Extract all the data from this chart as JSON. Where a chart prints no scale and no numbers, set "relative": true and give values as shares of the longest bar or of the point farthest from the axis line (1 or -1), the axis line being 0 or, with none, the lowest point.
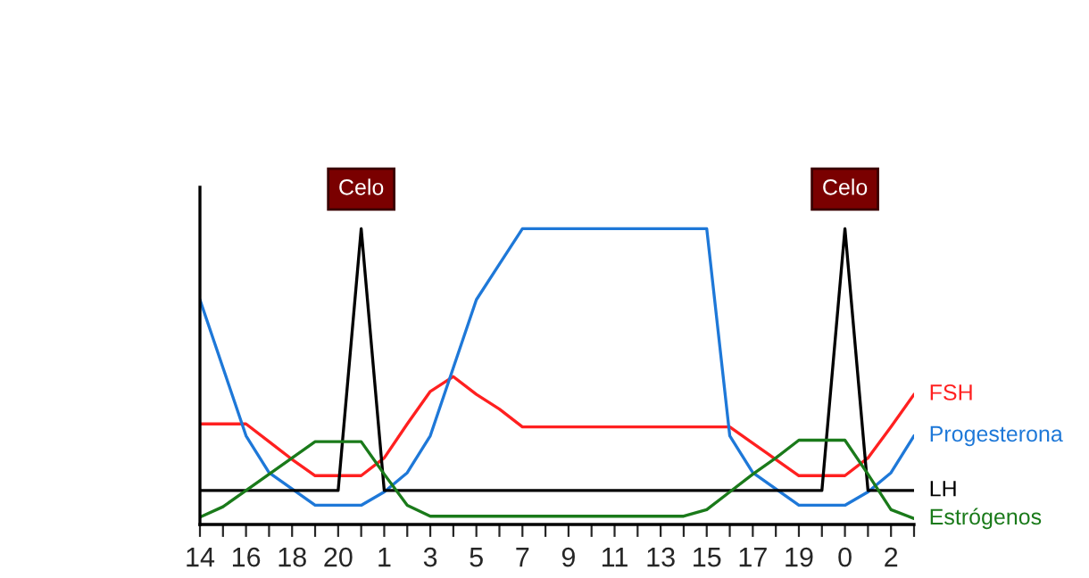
{
  "chart_data": {
    "type": "line",
    "relative": true,
    "categories": [
      "14",
      null,
      "16",
      null,
      "18",
      null,
      "20",
      null,
      "1",
      null,
      "3",
      null,
      "5",
      null,
      "7",
      null,
      "9",
      null,
      "11",
      null,
      "13",
      null,
      "15",
      null,
      "17",
      null,
      "19",
      null,
      "0",
      null,
      "2",
      null
    ],
    "series": [
      {
        "name": "FSH",
        "color": "#ff2020",
        "values": [
          0.34,
          0.34,
          0.34,
          0.28,
          0.22,
          0.165,
          0.165,
          0.165,
          0.225,
          0.34,
          0.45,
          0.5,
          0.44,
          0.39,
          0.33,
          0.33,
          0.33,
          0.33,
          0.33,
          0.33,
          0.33,
          0.33,
          0.33,
          0.33,
          0.275,
          0.22,
          0.165,
          0.165,
          0.165,
          0.225,
          0.33,
          0.44
        ]
      },
      {
        "name": "Progesterona",
        "color": "#1e78d8",
        "values": [
          0.76,
          0.53,
          0.3,
          0.175,
          0.12,
          0.065,
          0.065,
          0.065,
          0.11,
          0.175,
          0.3,
          0.53,
          0.76,
          0.88,
          1,
          1,
          1,
          1,
          1,
          1,
          1,
          1,
          1,
          0.3,
          0.175,
          0.12,
          0.065,
          0.065,
          0.065,
          0.11,
          0.175,
          0.3
        ]
      },
      {
        "name": "LH",
        "color": "#000000",
        "values": [
          0.115,
          0.115,
          0.115,
          0.115,
          0.115,
          0.115,
          0.115,
          1,
          0.115,
          0.115,
          0.115,
          0.115,
          0.115,
          0.115,
          0.115,
          0.115,
          0.115,
          0.115,
          0.115,
          0.115,
          0.115,
          0.115,
          0.115,
          0.115,
          0.115,
          0.115,
          0.115,
          0.115,
          1,
          0.115,
          0.115,
          0.115
        ]
      },
      {
        "name": "Estrógenos",
        "color": "#1a7a1a",
        "values": [
          0.025,
          0.06,
          0.115,
          0.17,
          0.225,
          0.28,
          0.28,
          0.28,
          0.17,
          0.065,
          0.028,
          0.028,
          0.028,
          0.028,
          0.028,
          0.028,
          0.028,
          0.028,
          0.028,
          0.028,
          0.028,
          0.028,
          0.05,
          0.11,
          0.17,
          0.225,
          0.285,
          0.285,
          0.285,
          0.17,
          0.05,
          0.02
        ]
      }
    ],
    "annotations": [
      "Celo",
      "Celo"
    ]
  }
}
